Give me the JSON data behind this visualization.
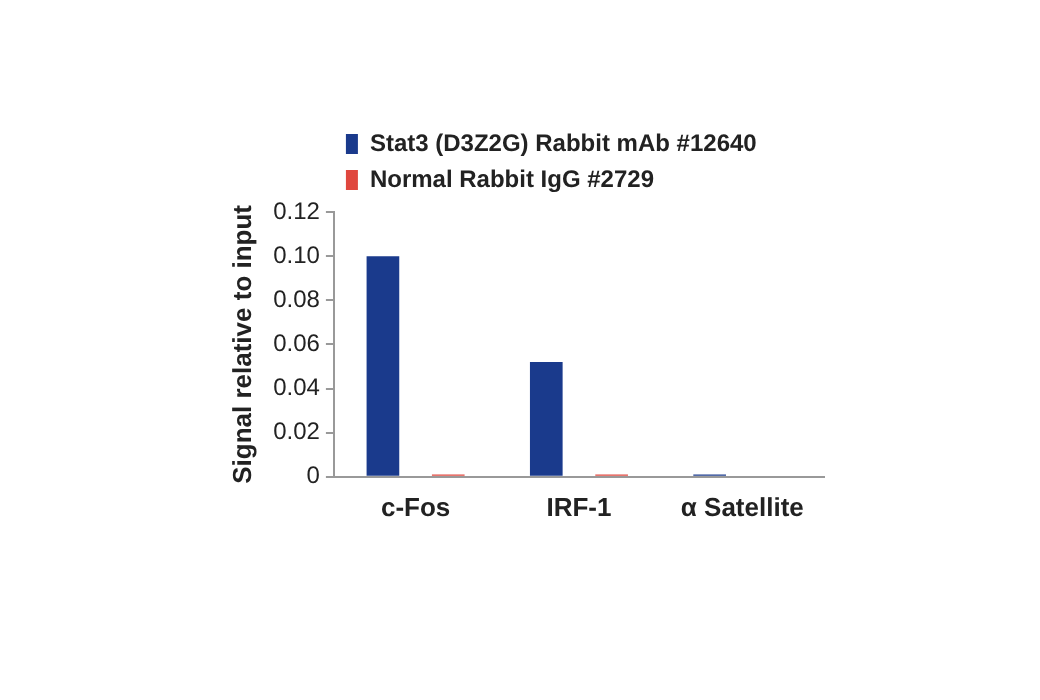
{
  "chart_data": {
    "type": "bar",
    "ylabel": "Signal relative to input",
    "categories": [
      "c-Fos",
      "IRF-1",
      "α Satellite"
    ],
    "series": [
      {
        "name": "Stat3 (D3Z2G) Rabbit mAb #12640",
        "color": "#1a3a8c",
        "values": [
          0.1,
          0.052,
          0.001
        ]
      },
      {
        "name": "Normal Rabbit IgG #2729",
        "color": "#e0473e",
        "values": [
          0.001,
          0.001,
          null
        ]
      }
    ],
    "ylim": [
      0,
      0.12
    ],
    "yticks": [
      0,
      0.02,
      0.04,
      0.06,
      0.08,
      {
        "value": 0.1,
        "label": "0.10"
      },
      0.12
    ],
    "grid": false,
    "legend": "top left"
  }
}
